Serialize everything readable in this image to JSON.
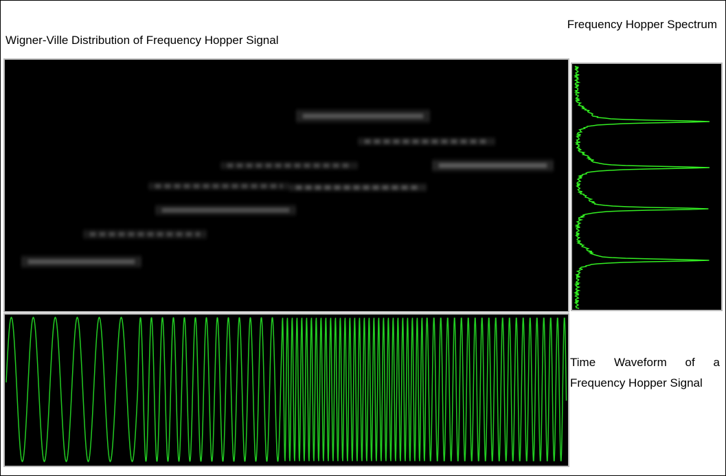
{
  "header": {
    "title": "Wigner-Ville Distribution of Frequency Hopper Signal"
  },
  "spectrum": {
    "title": "Frequency Hopper Spectrum"
  },
  "waveform": {
    "title": "Time Waveform of a Frequency Hopper Signal"
  }
}
